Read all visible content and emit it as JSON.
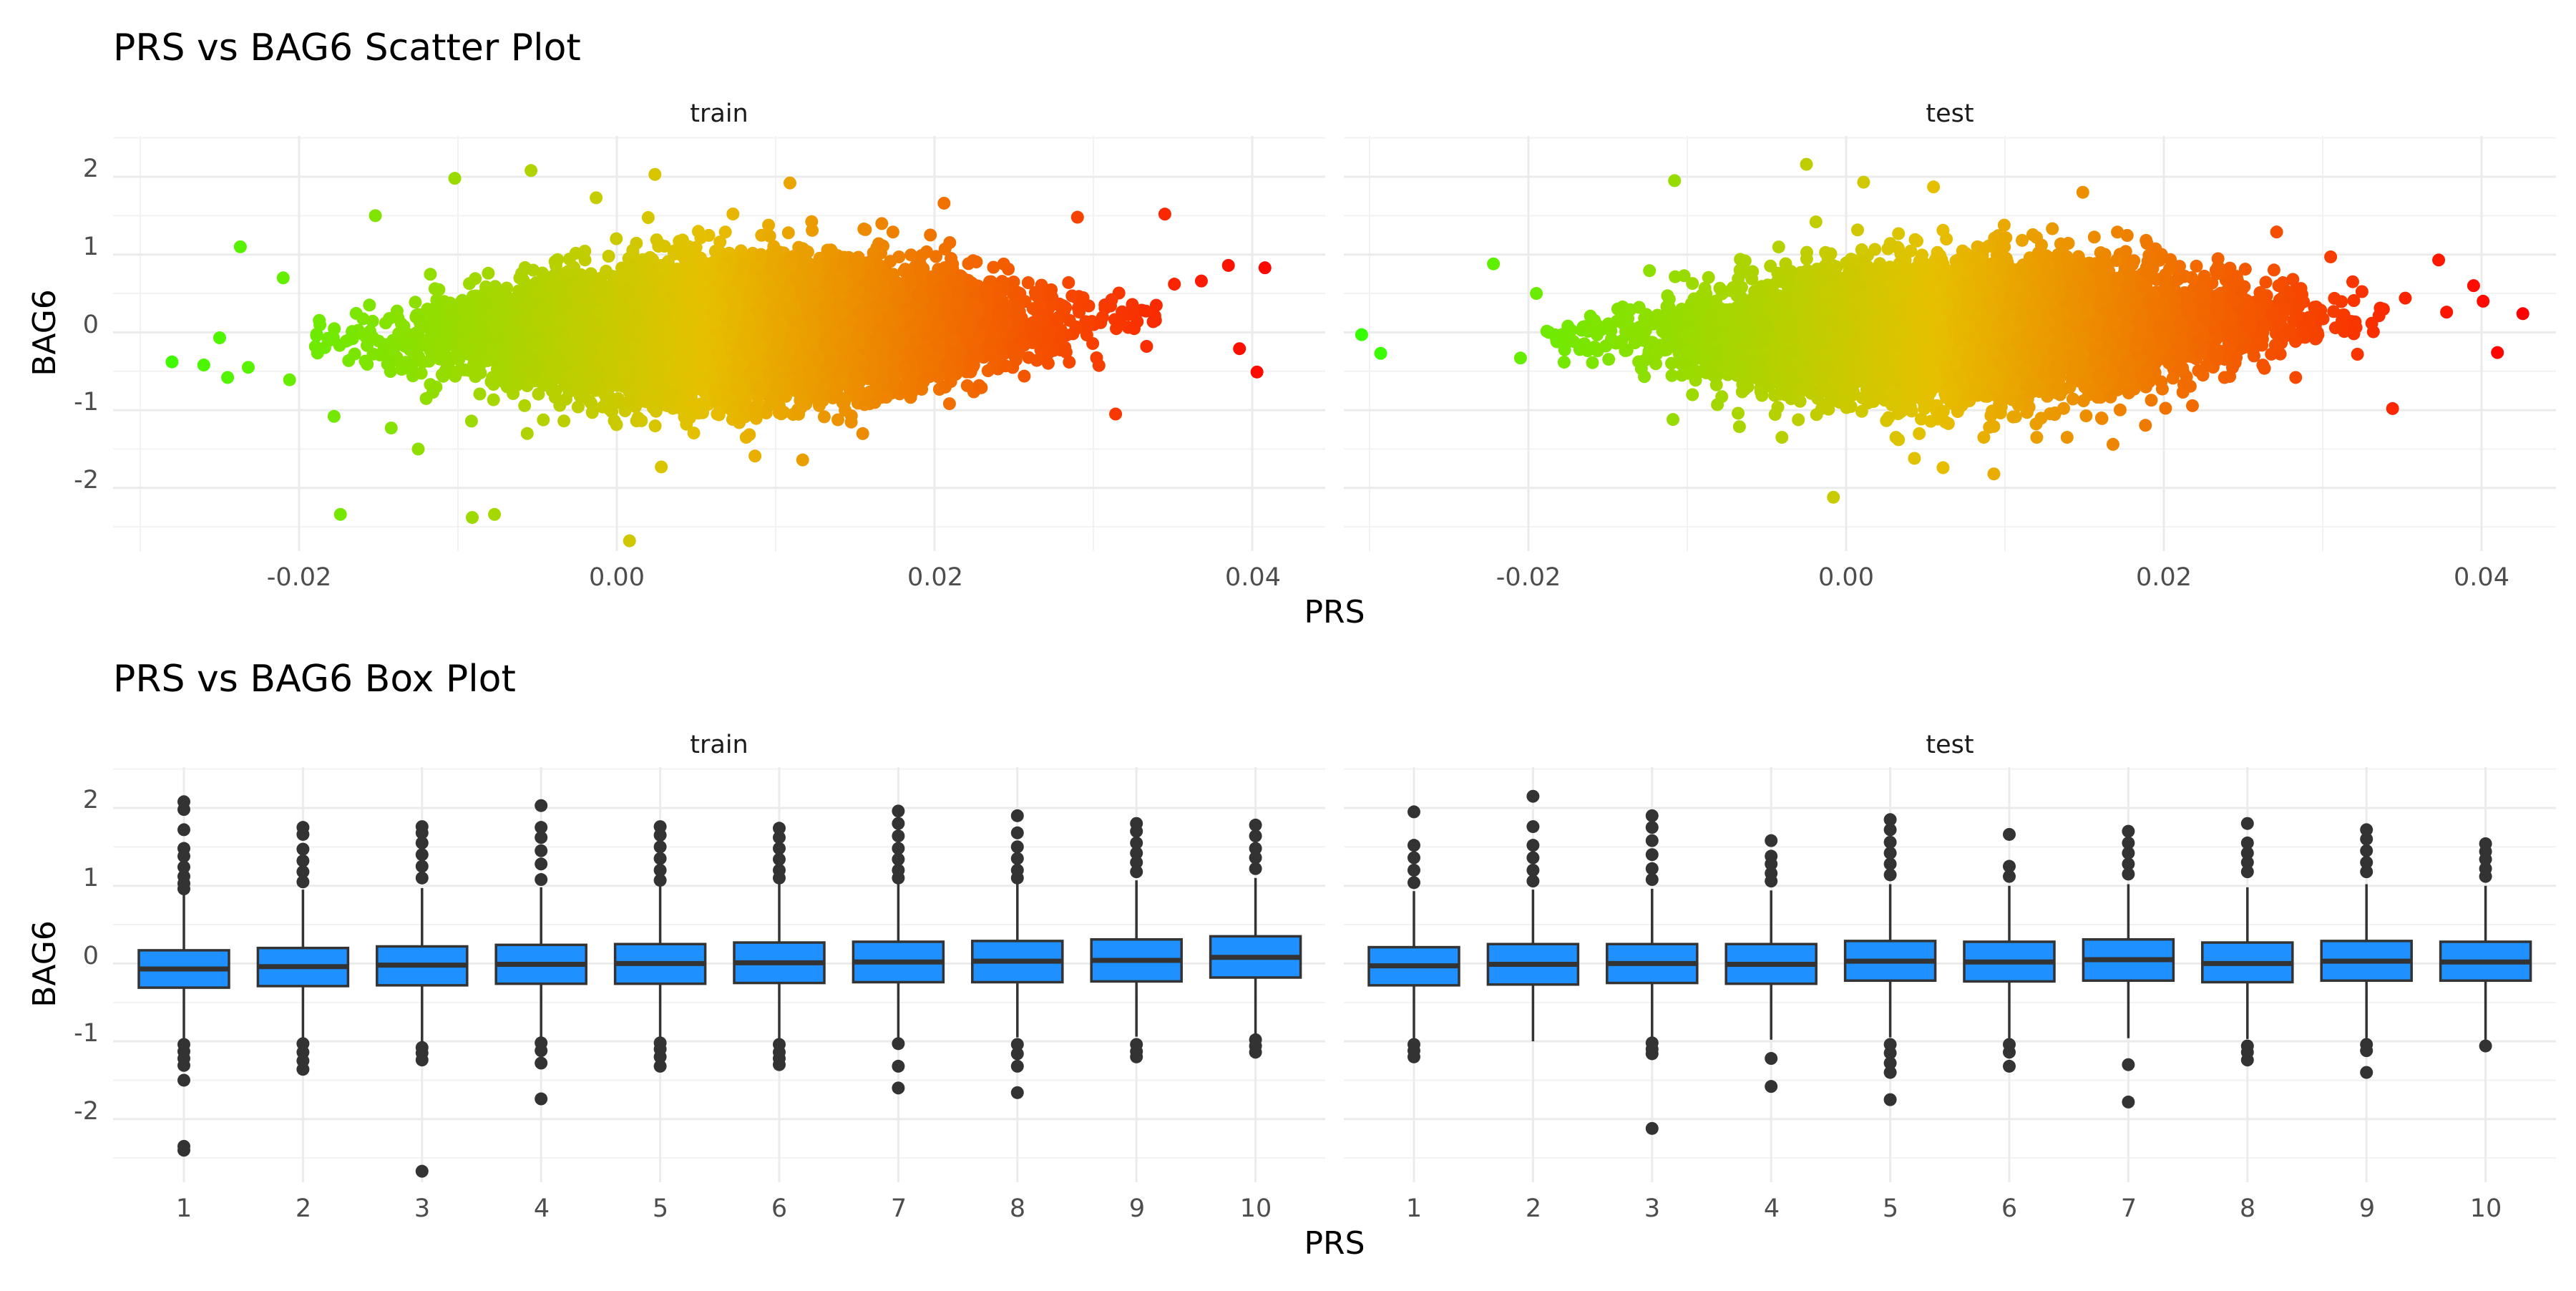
{
  "charts": [
    {
      "title": "PRS vs BAG6 Scatter Plot",
      "xlabel": "PRS",
      "ylabel": "BAG6",
      "panels": [
        {
          "label": "train",
          "x_ticks": [
            "-0.02",
            "0.00",
            "0.02",
            "0.04"
          ],
          "y_ticks": [
            "2",
            "1",
            "0",
            "-1",
            "-2"
          ]
        },
        {
          "label": "test",
          "x_ticks": [
            "-0.02",
            "0.00",
            "0.02",
            "0.04"
          ],
          "y_ticks": [
            "2",
            "1",
            "0",
            "-1",
            "-2"
          ]
        }
      ]
    },
    {
      "title": "PRS vs BAG6 Box Plot",
      "xlabel": "PRS",
      "ylabel": "BAG6",
      "panels": [
        {
          "label": "train",
          "x_ticks": [
            "1",
            "2",
            "3",
            "4",
            "5",
            "6",
            "7",
            "8",
            "9",
            "10"
          ],
          "y_ticks": [
            "2",
            "1",
            "0",
            "-1",
            "-2"
          ]
        },
        {
          "label": "test",
          "x_ticks": [
            "1",
            "2",
            "3",
            "4",
            "5",
            "6",
            "7",
            "8",
            "9",
            "10"
          ],
          "y_ticks": [
            "2",
            "1",
            "0",
            "-1",
            "-2"
          ]
        }
      ]
    }
  ],
  "chart_data": [
    {
      "type": "scatter",
      "title": "PRS vs BAG6 Scatter Plot",
      "xlabel": "PRS",
      "ylabel": "BAG6",
      "facets": [
        "train",
        "test"
      ],
      "color_scale": {
        "low": "#33ff00",
        "mid": "#e6c000",
        "high": "#ff0000"
      },
      "ranges": {
        "train": {
          "xlim": [
            -0.031,
            0.043
          ],
          "ylim": [
            -2.8,
            2.3
          ]
        },
        "test": {
          "xlim": [
            -0.033,
            0.043
          ],
          "ylim": [
            -2.8,
            2.3
          ]
        }
      },
      "series": [
        {
          "facet": "train",
          "outliers": [
            [
              -0.028,
              -0.38
            ],
            [
              -0.026,
              -0.42
            ],
            [
              -0.025,
              -0.07
            ],
            [
              -0.0245,
              -0.58
            ],
            [
              -0.0237,
              1.1
            ],
            [
              -0.0232,
              -0.45
            ],
            [
              -0.021,
              0.7
            ],
            [
              -0.0206,
              -0.61
            ],
            [
              -0.0174,
              -2.34
            ],
            [
              -0.0178,
              -1.08
            ],
            [
              -0.0152,
              1.5
            ],
            [
              -0.0142,
              -1.23
            ],
            [
              -0.0125,
              -1.5
            ],
            [
              -0.0102,
              1.98
            ],
            [
              -0.0091,
              -2.38
            ],
            [
              -0.0077,
              -2.34
            ],
            [
              -0.0054,
              2.08
            ],
            [
              -0.0013,
              1.73
            ],
            [
              0.0008,
              -2.68
            ],
            [
              0.0024,
              2.03
            ],
            [
              0.0028,
              -1.73
            ],
            [
              0.0087,
              -1.59
            ],
            [
              0.0109,
              1.92
            ],
            [
              0.0117,
              -1.64
            ],
            [
              0.0206,
              1.66
            ],
            [
              0.029,
              1.48
            ],
            [
              0.0314,
              -1.05
            ],
            [
              0.0345,
              1.52
            ],
            [
              0.0351,
              0.62
            ],
            [
              0.0368,
              0.66
            ],
            [
              0.0385,
              0.86
            ],
            [
              0.0392,
              -0.21
            ],
            [
              0.0403,
              -0.51
            ],
            [
              0.0408,
              0.83
            ]
          ]
        },
        {
          "facet": "test",
          "outliers": [
            [
              -0.0305,
              -0.03
            ],
            [
              -0.0293,
              -0.27
            ],
            [
              -0.0222,
              0.88
            ],
            [
              -0.0205,
              -0.33
            ],
            [
              -0.0195,
              0.5
            ],
            [
              -0.0108,
              1.95
            ],
            [
              -0.0109,
              -1.12
            ],
            [
              -0.0068,
              -1.04
            ],
            [
              -0.0025,
              2.16
            ],
            [
              -0.0019,
              1.42
            ],
            [
              -0.0008,
              -2.12
            ],
            [
              0.0011,
              1.93
            ],
            [
              0.0033,
              -1.38
            ],
            [
              0.0043,
              -1.62
            ],
            [
              0.0055,
              1.87
            ],
            [
              0.0061,
              -1.74
            ],
            [
              0.0093,
              -1.82
            ],
            [
              0.0149,
              1.8
            ],
            [
              0.0168,
              -1.44
            ],
            [
              0.0271,
              1.29
            ],
            [
              0.0283,
              -0.58
            ],
            [
              0.0305,
              0.97
            ],
            [
              0.0344,
              -0.98
            ],
            [
              0.0352,
              0.44
            ],
            [
              0.0373,
              0.93
            ],
            [
              0.0378,
              0.26
            ],
            [
              0.0395,
              0.6
            ],
            [
              0.0401,
              0.4
            ],
            [
              0.041,
              -0.26
            ],
            [
              0.0426,
              0.24
            ]
          ]
        }
      ]
    },
    {
      "type": "box",
      "title": "PRS vs BAG6 Box Plot",
      "xlabel": "PRS",
      "ylabel": "BAG6",
      "facets": [
        "train",
        "test"
      ],
      "categories": [
        "1",
        "2",
        "3",
        "4",
        "5",
        "6",
        "7",
        "8",
        "9",
        "10"
      ],
      "ylim": [
        -2.8,
        2.3
      ],
      "fill_color": "#1e90ff",
      "series": [
        {
          "facet": "train",
          "boxes": [
            {
              "q1": -0.31,
              "median": -0.07,
              "q3": 0.17,
              "lower_whisker": -1.0,
              "upper_whisker": 0.9,
              "outliers": [
                2.08,
                1.98,
                1.72,
                1.48,
                1.38,
                1.24,
                1.12,
                1.03,
                0.96,
                -1.04,
                -1.13,
                -1.22,
                -1.31,
                -1.5,
                -2.35,
                -2.4
              ]
            },
            {
              "q1": -0.29,
              "median": -0.04,
              "q3": 0.2,
              "lower_whisker": -1.0,
              "upper_whisker": 0.95,
              "outliers": [
                1.75,
                1.66,
                1.47,
                1.32,
                1.18,
                1.05,
                -1.03,
                -1.14,
                -1.25,
                -1.36
              ]
            },
            {
              "q1": -0.28,
              "median": -0.02,
              "q3": 0.22,
              "lower_whisker": -1.0,
              "upper_whisker": 0.97,
              "outliers": [
                1.76,
                1.68,
                1.55,
                1.4,
                1.25,
                1.1,
                -1.08,
                -1.15,
                -1.24,
                -2.67
              ]
            },
            {
              "q1": -0.26,
              "median": -0.01,
              "q3": 0.24,
              "lower_whisker": -0.98,
              "upper_whisker": 0.98,
              "outliers": [
                2.03,
                1.75,
                1.62,
                1.45,
                1.28,
                1.08,
                -1.02,
                -1.12,
                -1.28,
                -1.74
              ]
            },
            {
              "q1": -0.26,
              "median": 0.0,
              "q3": 0.25,
              "lower_whisker": -0.98,
              "upper_whisker": 1.0,
              "outliers": [
                1.76,
                1.65,
                1.5,
                1.35,
                1.2,
                1.07,
                -1.02,
                -1.1,
                -1.2,
                -1.32
              ]
            },
            {
              "q1": -0.25,
              "median": 0.01,
              "q3": 0.27,
              "lower_whisker": -0.97,
              "upper_whisker": 1.02,
              "outliers": [
                1.74,
                1.62,
                1.48,
                1.34,
                1.2,
                1.1,
                -1.04,
                -1.14,
                -1.22,
                -1.3
              ]
            },
            {
              "q1": -0.24,
              "median": 0.02,
              "q3": 0.28,
              "lower_whisker": -0.96,
              "upper_whisker": 1.04,
              "outliers": [
                1.96,
                1.8,
                1.64,
                1.48,
                1.34,
                1.2,
                1.1,
                -1.03,
                -1.32,
                -1.6
              ]
            },
            {
              "q1": -0.24,
              "median": 0.03,
              "q3": 0.29,
              "lower_whisker": -0.95,
              "upper_whisker": 1.05,
              "outliers": [
                1.9,
                1.68,
                1.5,
                1.35,
                1.2,
                1.1,
                -1.04,
                -1.16,
                -1.32,
                -1.66
              ]
            },
            {
              "q1": -0.23,
              "median": 0.04,
              "q3": 0.31,
              "lower_whisker": -0.94,
              "upper_whisker": 1.07,
              "outliers": [
                1.8,
                1.7,
                1.55,
                1.42,
                1.3,
                1.18,
                -1.04,
                -1.13,
                -1.2
              ]
            },
            {
              "q1": -0.18,
              "median": 0.08,
              "q3": 0.35,
              "lower_whisker": -0.92,
              "upper_whisker": 1.1,
              "outliers": [
                1.78,
                1.64,
                1.48,
                1.36,
                1.22,
                -0.98,
                -1.06,
                -1.14
              ]
            }
          ]
        },
        {
          "facet": "test",
          "boxes": [
            {
              "q1": -0.28,
              "median": -0.03,
              "q3": 0.21,
              "lower_whisker": -0.98,
              "upper_whisker": 0.93,
              "outliers": [
                1.95,
                1.52,
                1.36,
                1.2,
                1.04,
                -1.04,
                -1.12,
                -1.2
              ]
            },
            {
              "q1": -0.27,
              "median": -0.01,
              "q3": 0.25,
              "lower_whisker": -1.0,
              "upper_whisker": 0.95,
              "outliers": [
                2.15,
                1.76,
                1.52,
                1.36,
                1.2,
                1.06
              ]
            },
            {
              "q1": -0.25,
              "median": 0.0,
              "q3": 0.25,
              "lower_whisker": -0.98,
              "upper_whisker": 0.96,
              "outliers": [
                1.9,
                1.75,
                1.58,
                1.4,
                1.22,
                1.08,
                -1.02,
                -1.1,
                -1.16,
                -2.12
              ]
            },
            {
              "q1": -0.26,
              "median": -0.01,
              "q3": 0.25,
              "lower_whisker": -0.98,
              "upper_whisker": 0.94,
              "outliers": [
                1.58,
                1.38,
                1.28,
                1.16,
                1.06,
                -1.22,
                -1.58
              ]
            },
            {
              "q1": -0.22,
              "median": 0.03,
              "q3": 0.29,
              "lower_whisker": -0.95,
              "upper_whisker": 1.02,
              "outliers": [
                1.85,
                1.72,
                1.56,
                1.42,
                1.28,
                1.14,
                -1.04,
                -1.15,
                -1.28,
                -1.4,
                -1.75
              ]
            },
            {
              "q1": -0.23,
              "median": 0.02,
              "q3": 0.28,
              "lower_whisker": -0.96,
              "upper_whisker": 1.0,
              "outliers": [
                1.66,
                1.25,
                1.12,
                -1.04,
                -1.14,
                -1.32
              ]
            },
            {
              "q1": -0.22,
              "median": 0.05,
              "q3": 0.31,
              "lower_whisker": -0.96,
              "upper_whisker": 1.02,
              "outliers": [
                1.7,
                1.55,
                1.42,
                1.28,
                1.15,
                -1.3,
                -1.78
              ]
            },
            {
              "q1": -0.24,
              "median": 0.0,
              "q3": 0.27,
              "lower_whisker": -0.97,
              "upper_whisker": 0.98,
              "outliers": [
                1.8,
                1.55,
                1.42,
                1.3,
                1.18,
                -1.06,
                -1.14,
                -1.24
              ]
            },
            {
              "q1": -0.22,
              "median": 0.03,
              "q3": 0.29,
              "lower_whisker": -0.96,
              "upper_whisker": 1.02,
              "outliers": [
                1.72,
                1.6,
                1.45,
                1.3,
                1.18,
                -1.04,
                -1.12,
                -1.4
              ]
            },
            {
              "q1": -0.22,
              "median": 0.02,
              "q3": 0.28,
              "lower_whisker": -0.98,
              "upper_whisker": 1.0,
              "outliers": [
                1.54,
                1.44,
                1.34,
                1.22,
                1.12,
                -1.06
              ]
            }
          ]
        }
      ]
    }
  ]
}
